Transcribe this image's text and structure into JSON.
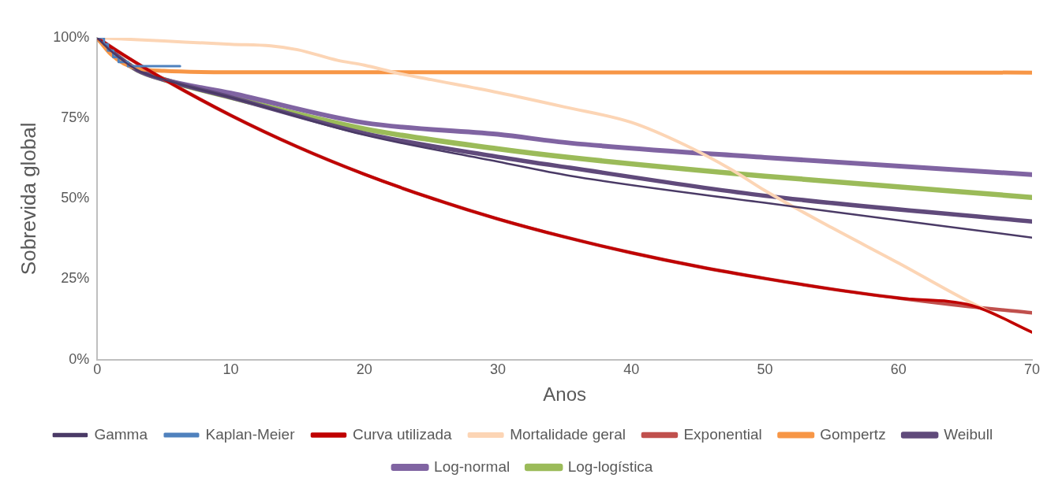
{
  "chart_data": {
    "type": "line",
    "xlabel": "Anos",
    "ylabel": "Sobrevida global",
    "xlim": [
      0,
      70
    ],
    "ylim": [
      0,
      100
    ],
    "xticks": [
      0,
      10,
      20,
      30,
      40,
      50,
      60,
      70
    ],
    "yticks": [
      {
        "value": 0,
        "label": "0%"
      },
      {
        "value": 25,
        "label": "25%"
      },
      {
        "value": 50,
        "label": "50%"
      },
      {
        "value": 75,
        "label": "75%"
      },
      {
        "value": 100,
        "label": "100%"
      }
    ],
    "grid": false,
    "legend": "bottom",
    "marker": "none",
    "line_style": "solid",
    "series": [
      {
        "name": "Log-logística",
        "color": "#9bbb59",
        "x": [
          0,
          1,
          3,
          5,
          10,
          20,
          30,
          35.4,
          50,
          70
        ],
        "values": [
          100,
          96,
          90,
          87,
          81.5,
          71.7,
          65.5,
          62.8,
          57,
          50.4
        ]
      },
      {
        "name": "Log-normal",
        "color": "#8064a2",
        "x": [
          0,
          1,
          3,
          5,
          10,
          20,
          30,
          35.4,
          50,
          70
        ],
        "values": [
          100,
          96,
          90,
          87,
          82.8,
          73.6,
          70,
          67.3,
          62.8,
          57.5
        ]
      },
      {
        "name": "Weibull",
        "color": "#604a7b",
        "x": [
          0,
          1,
          3,
          5,
          10,
          20,
          30,
          35.4,
          50,
          70
        ],
        "values": [
          100,
          96,
          90,
          87,
          81.5,
          70.3,
          63,
          59.6,
          50.9,
          42.9
        ]
      },
      {
        "name": "Gompertz",
        "color": "#f79646",
        "x": [
          0,
          1,
          2,
          3,
          5,
          10,
          70
        ],
        "values": [
          100,
          95,
          92,
          90.5,
          89.7,
          89.3,
          89.2
        ]
      },
      {
        "name": "Exponential",
        "color": "#c0504d",
        "x": [
          0,
          2,
          5,
          10,
          15,
          20,
          25,
          30,
          35,
          40,
          45,
          50,
          55,
          60,
          65,
          70
        ],
        "values": [
          100,
          94.6,
          87.1,
          75.9,
          66.1,
          57.6,
          50.2,
          43.7,
          38.1,
          33.2,
          28.9,
          25.2,
          21.9,
          19.1,
          16.6,
          14.5
        ]
      },
      {
        "name": "Mortalidade geral",
        "color": "#fcd5b5",
        "x": [
          0,
          5,
          10,
          13,
          15,
          18,
          20,
          22.5,
          25,
          30,
          35,
          40,
          44,
          47.5,
          50,
          55,
          60,
          65,
          70
        ],
        "values": [
          100,
          99,
          98,
          97.5,
          96.3,
          93,
          91.5,
          89,
          87,
          83,
          78.5,
          73.7,
          66.7,
          59,
          52.5,
          41,
          30,
          18.6,
          8.5
        ]
      },
      {
        "name": "Curva utilizada",
        "color": "#c00000",
        "x": [
          0,
          2,
          5,
          10,
          15,
          20,
          25,
          30,
          35,
          40,
          45,
          50,
          55,
          60,
          65.5,
          70
        ],
        "values": [
          100,
          94.6,
          87.1,
          75.9,
          66.1,
          57.6,
          50.2,
          43.7,
          38.1,
          33.2,
          28.9,
          25.2,
          21.9,
          19.1,
          16.8,
          8.5
        ]
      },
      {
        "name": "Kaplan-Meier",
        "color": "#4f81bd",
        "type": "step",
        "x": [
          0,
          0.5,
          0.8,
          1.2,
          1.6,
          2.3,
          6.2
        ],
        "values": [
          100,
          98,
          96,
          94,
          92.5,
          91.2,
          91.2
        ]
      },
      {
        "name": "Gamma",
        "color": "#4a3a66",
        "x": [
          0,
          1,
          3,
          5,
          10,
          20,
          30,
          35.4,
          50,
          70
        ],
        "values": [
          100,
          96,
          90,
          87,
          81.5,
          69.8,
          61.5,
          57.1,
          48.7,
          37.9
        ]
      }
    ]
  }
}
